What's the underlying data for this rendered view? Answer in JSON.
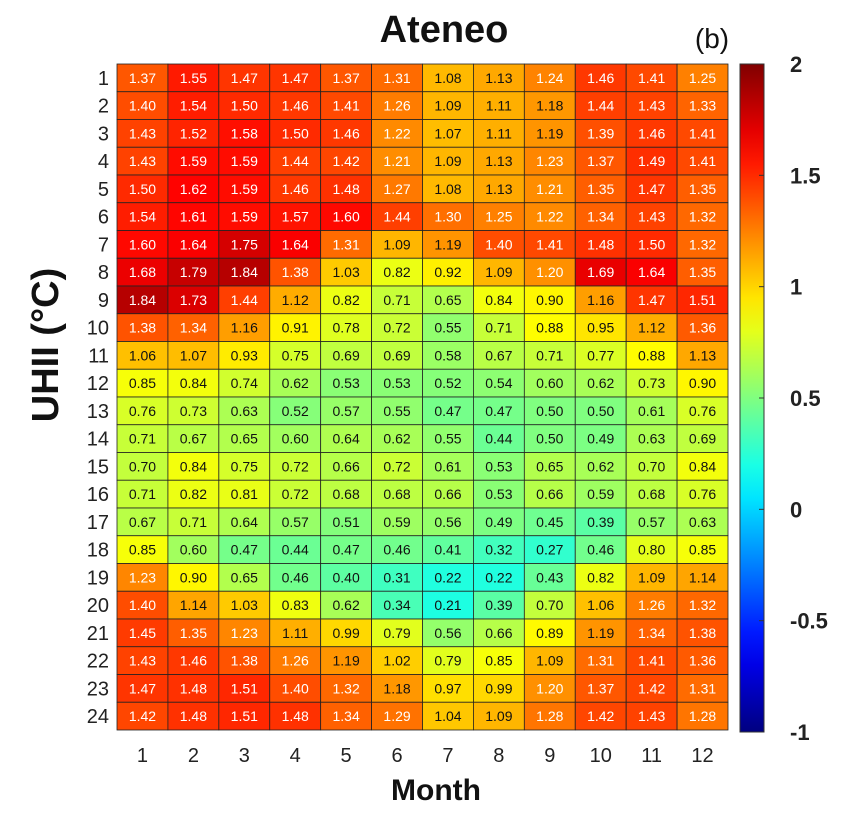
{
  "chart_data": {
    "type": "heatmap",
    "title": "Ateneo",
    "panel_label": "(b)",
    "xlabel": "Month",
    "ylabel": "UHII (°C)",
    "x": [
      "1",
      "2",
      "3",
      "4",
      "5",
      "6",
      "7",
      "8",
      "9",
      "10",
      "11",
      "12"
    ],
    "y": [
      "1",
      "2",
      "3",
      "4",
      "5",
      "6",
      "7",
      "8",
      "9",
      "10",
      "11",
      "12",
      "13",
      "14",
      "15",
      "16",
      "17",
      "18",
      "19",
      "20",
      "21",
      "22",
      "23",
      "24"
    ],
    "values": [
      [
        1.37,
        1.55,
        1.47,
        1.47,
        1.37,
        1.31,
        1.08,
        1.13,
        1.24,
        1.46,
        1.41,
        1.25
      ],
      [
        1.4,
        1.54,
        1.5,
        1.46,
        1.41,
        1.26,
        1.09,
        1.11,
        1.18,
        1.44,
        1.43,
        1.33
      ],
      [
        1.43,
        1.52,
        1.58,
        1.5,
        1.46,
        1.22,
        1.07,
        1.11,
        1.19,
        1.39,
        1.46,
        1.41
      ],
      [
        1.43,
        1.59,
        1.59,
        1.44,
        1.42,
        1.21,
        1.09,
        1.13,
        1.23,
        1.37,
        1.49,
        1.41
      ],
      [
        1.5,
        1.62,
        1.59,
        1.46,
        1.48,
        1.27,
        1.08,
        1.13,
        1.21,
        1.35,
        1.47,
        1.35
      ],
      [
        1.54,
        1.61,
        1.59,
        1.57,
        1.6,
        1.44,
        1.3,
        1.25,
        1.22,
        1.34,
        1.43,
        1.32
      ],
      [
        1.6,
        1.64,
        1.75,
        1.64,
        1.31,
        1.09,
        1.19,
        1.4,
        1.41,
        1.48,
        1.5,
        1.32
      ],
      [
        1.68,
        1.79,
        1.84,
        1.38,
        1.03,
        0.82,
        0.92,
        1.09,
        1.2,
        1.69,
        1.64,
        1.35
      ],
      [
        1.84,
        1.73,
        1.44,
        1.12,
        0.82,
        0.71,
        0.65,
        0.84,
        0.9,
        1.16,
        1.47,
        1.51
      ],
      [
        1.38,
        1.34,
        1.16,
        0.91,
        0.78,
        0.72,
        0.55,
        0.71,
        0.88,
        0.95,
        1.12,
        1.36
      ],
      [
        1.06,
        1.07,
        0.93,
        0.75,
        0.69,
        0.69,
        0.58,
        0.67,
        0.71,
        0.77,
        0.88,
        1.13
      ],
      [
        0.85,
        0.84,
        0.74,
        0.62,
        0.53,
        0.53,
        0.52,
        0.54,
        0.6,
        0.62,
        0.73,
        0.9
      ],
      [
        0.76,
        0.73,
        0.63,
        0.52,
        0.57,
        0.55,
        0.47,
        0.47,
        0.5,
        0.5,
        0.61,
        0.76
      ],
      [
        0.71,
        0.67,
        0.65,
        0.6,
        0.64,
        0.62,
        0.55,
        0.44,
        0.5,
        0.49,
        0.63,
        0.69
      ],
      [
        0.7,
        0.84,
        0.75,
        0.72,
        0.66,
        0.72,
        0.61,
        0.53,
        0.65,
        0.62,
        0.7,
        0.84
      ],
      [
        0.71,
        0.82,
        0.81,
        0.72,
        0.68,
        0.68,
        0.66,
        0.53,
        0.66,
        0.59,
        0.68,
        0.76
      ],
      [
        0.67,
        0.71,
        0.64,
        0.57,
        0.51,
        0.59,
        0.56,
        0.49,
        0.45,
        0.39,
        0.57,
        0.63
      ],
      [
        0.85,
        0.6,
        0.47,
        0.44,
        0.47,
        0.46,
        0.41,
        0.32,
        0.27,
        0.46,
        0.8,
        0.85
      ],
      [
        1.23,
        0.9,
        0.65,
        0.46,
        0.4,
        0.31,
        0.22,
        0.22,
        0.43,
        0.82,
        1.09,
        1.14
      ],
      [
        1.4,
        1.14,
        1.03,
        0.83,
        0.62,
        0.34,
        0.21,
        0.39,
        0.7,
        1.06,
        1.26,
        1.32
      ],
      [
        1.45,
        1.35,
        1.23,
        1.11,
        0.99,
        0.79,
        0.56,
        0.66,
        0.89,
        1.19,
        1.34,
        1.38
      ],
      [
        1.43,
        1.46,
        1.38,
        1.26,
        1.19,
        1.02,
        0.79,
        0.85,
        1.09,
        1.31,
        1.41,
        1.36
      ],
      [
        1.47,
        1.48,
        1.51,
        1.4,
        1.32,
        1.18,
        0.97,
        0.99,
        1.2,
        1.37,
        1.42,
        1.31
      ],
      [
        1.42,
        1.48,
        1.51,
        1.48,
        1.34,
        1.29,
        1.04,
        1.09,
        1.28,
        1.42,
        1.43,
        1.28
      ]
    ],
    "colorbar": {
      "range": [
        -1,
        2
      ],
      "ticks": [
        "2",
        "1.5",
        "1",
        "0.5",
        "0",
        "-0.5",
        "-1"
      ],
      "tick_values": [
        2,
        1.5,
        1,
        0.5,
        0,
        -0.5,
        -1
      ],
      "colormap": "jet"
    },
    "grid": true
  }
}
